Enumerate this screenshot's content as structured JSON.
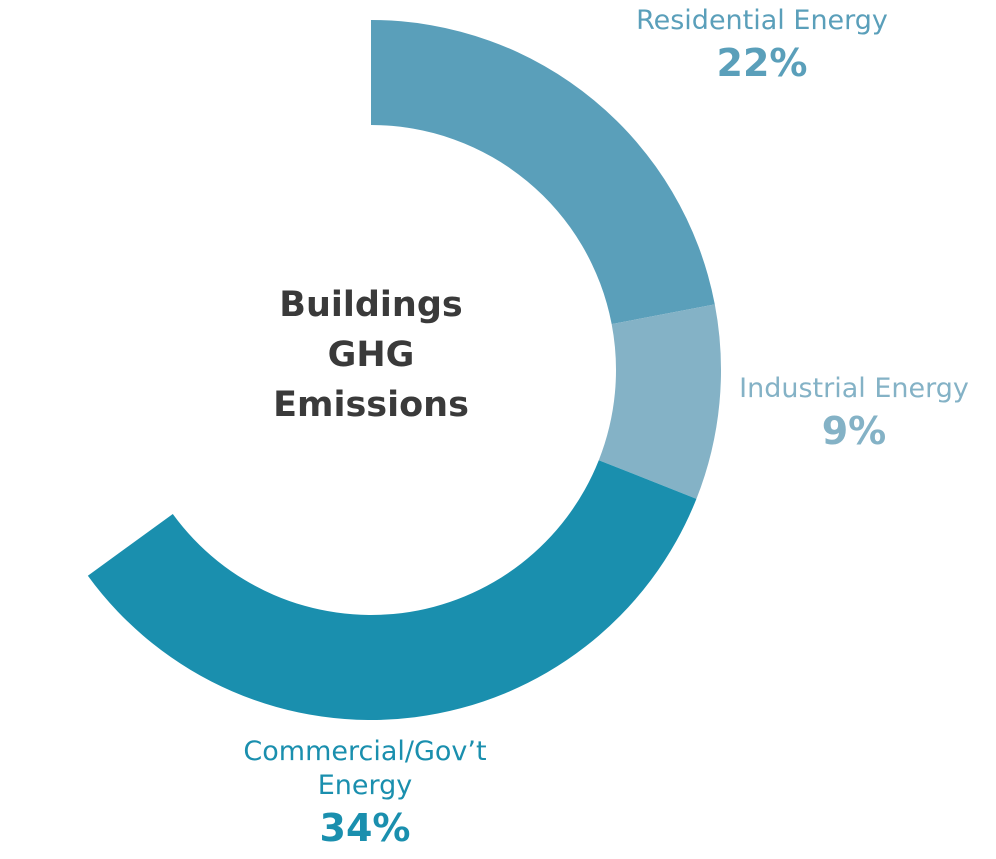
{
  "chart_data": {
    "type": "donut",
    "title": "Buildings GHG Emissions",
    "categories": [
      "Residential Energy",
      "Industrial Energy",
      "Commercial/Gov’t Energy"
    ],
    "values": [
      22,
      9,
      34
    ],
    "value_labels": [
      "22%",
      "9%",
      "34%"
    ],
    "colors": [
      "#5a9fba",
      "#84b2c6",
      "#1a8fae"
    ]
  }
}
